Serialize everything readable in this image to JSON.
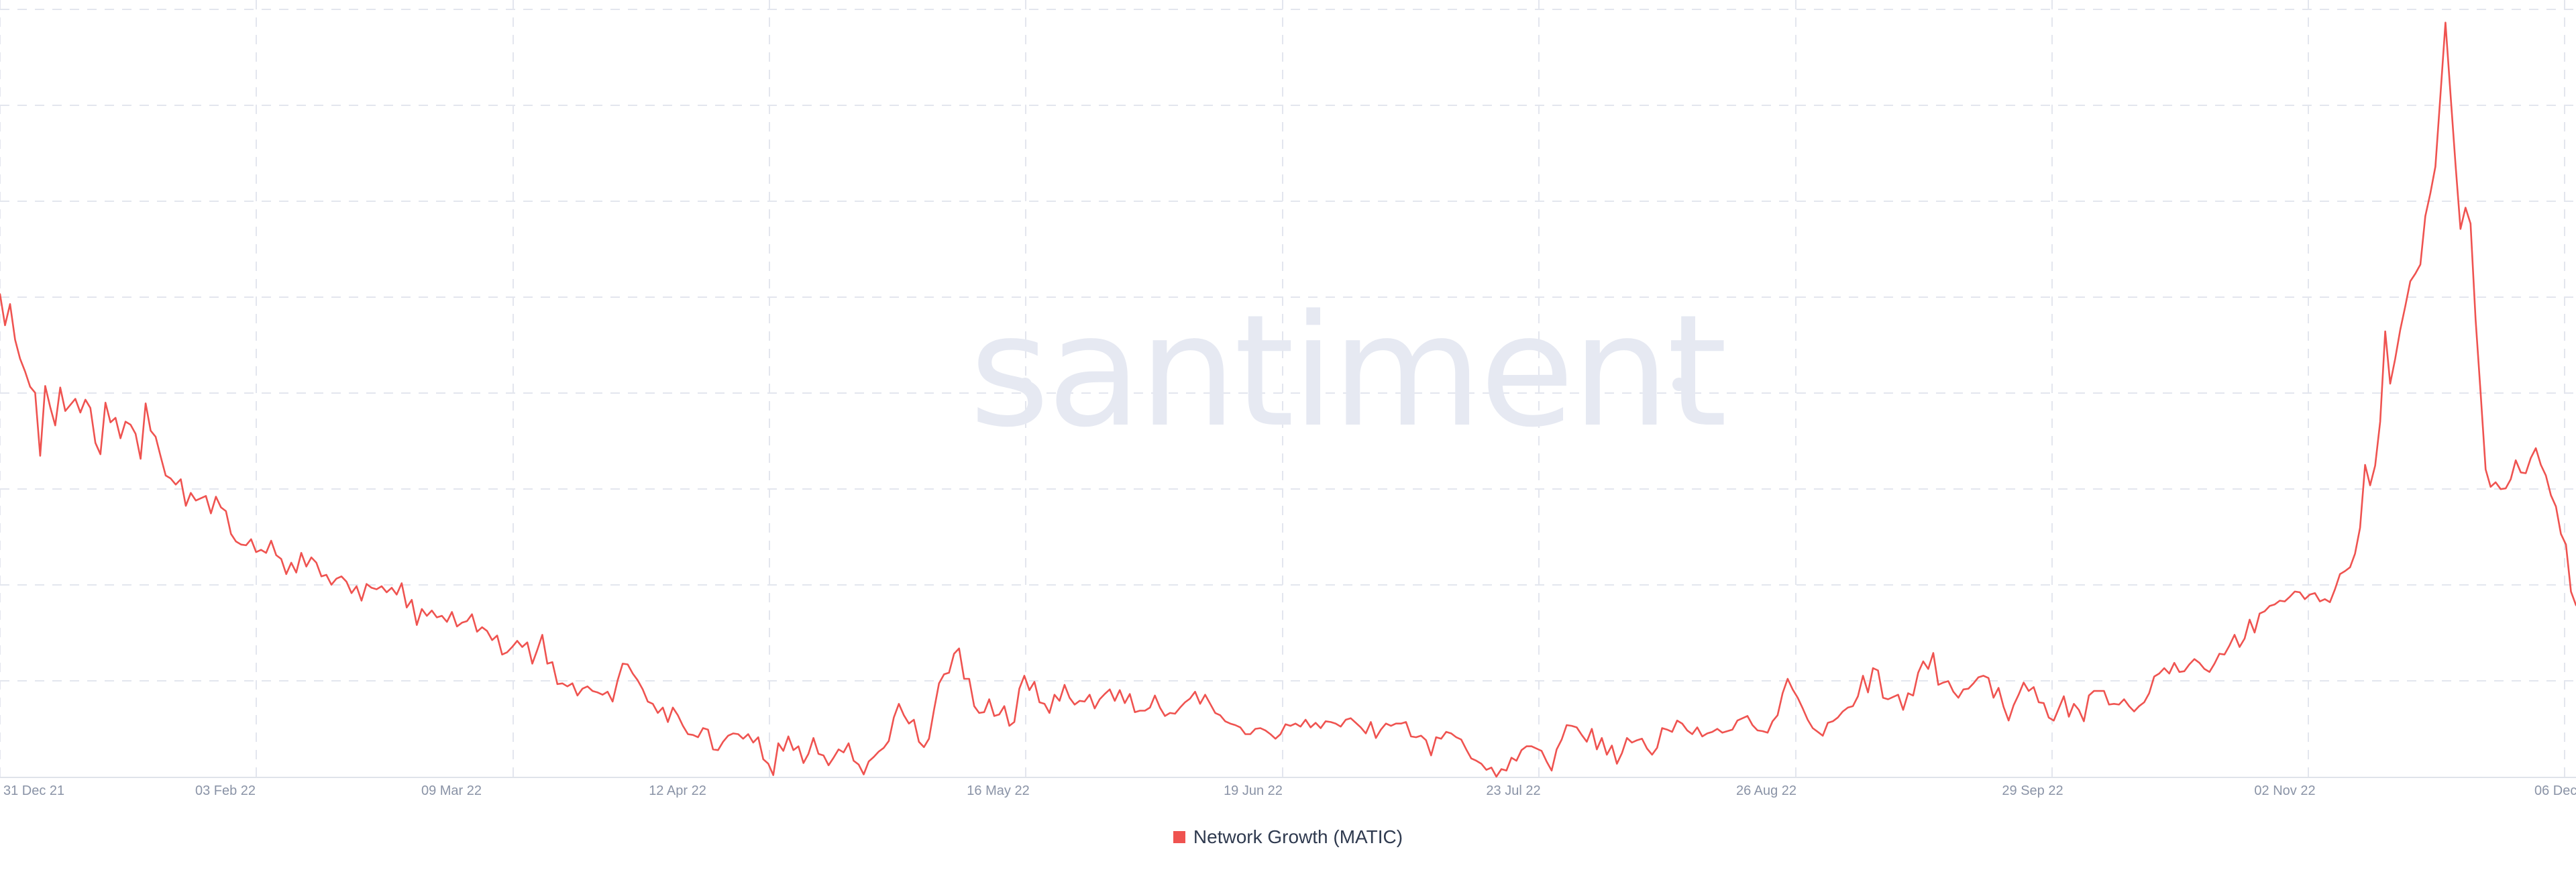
{
  "chart_data": {
    "type": "line",
    "watermark": "santiment",
    "x_tick_labels": [
      "31 Dec 21",
      "03 Feb 22",
      "09 Mar 22",
      "12 Apr 22",
      "16 May 22",
      "19 Jun 22",
      "23 Jul 22",
      "26 Aug 22",
      "29 Sep 22",
      "02 Nov 22",
      "06 Dec"
    ],
    "grid": true,
    "y_axis_labels_visible": false,
    "legend_position": "bottom-center",
    "series": [
      {
        "name": "Network Growth (MATIC)",
        "color": "#ef5350",
        "x_start": "2021-12-31",
        "x_end": "2022-12-06",
        "values": [
          0.637,
          0.596,
          0.624,
          0.577,
          0.552,
          0.535,
          0.515,
          0.507,
          0.424,
          0.516,
          0.488,
          0.464,
          0.514,
          0.483,
          0.491,
          0.499,
          0.481,
          0.498,
          0.487,
          0.441,
          0.426,
          0.494,
          0.468,
          0.474,
          0.447,
          0.469,
          0.465,
          0.453,
          0.42,
          0.493,
          0.457,
          0.449,
          0.423,
          0.398,
          0.394,
          0.386,
          0.393,
          0.358,
          0.375,
          0.365,
          0.368,
          0.371,
          0.348,
          0.37,
          0.356,
          0.351,
          0.321,
          0.311,
          0.307,
          0.306,
          0.314,
          0.297,
          0.3,
          0.296,
          0.312,
          0.293,
          0.288,
          0.268,
          0.283,
          0.27,
          0.296,
          0.278,
          0.29,
          0.283,
          0.265,
          0.267,
          0.254,
          0.262,
          0.265,
          0.258,
          0.243,
          0.252,
          0.233,
          0.255,
          0.25,
          0.248,
          0.252,
          0.244,
          0.25,
          0.241,
          0.256,
          0.224,
          0.234,
          0.201,
          0.222,
          0.213,
          0.22,
          0.211,
          0.213,
          0.205,
          0.218,
          0.199,
          0.204,
          0.206,
          0.215,
          0.192,
          0.198,
          0.193,
          0.181,
          0.187,
          0.162,
          0.165,
          0.172,
          0.18,
          0.172,
          0.178,
          0.15,
          0.168,
          0.188,
          0.15,
          0.152,
          0.123,
          0.124,
          0.12,
          0.124,
          0.108,
          0.117,
          0.12,
          0.114,
          0.112,
          0.109,
          0.113,
          0.1,
          0.128,
          0.15,
          0.149,
          0.137,
          0.128,
          0.116,
          0.1,
          0.097,
          0.085,
          0.092,
          0.073,
          0.092,
          0.082,
          0.068,
          0.057,
          0.056,
          0.053,
          0.065,
          0.063,
          0.037,
          0.036,
          0.047,
          0.055,
          0.058,
          0.057,
          0.051,
          0.057,
          0.046,
          0.053,
          0.024,
          0.018,
          0.003,
          0.045,
          0.035,
          0.054,
          0.036,
          0.041,
          0.019,
          0.031,
          0.052,
          0.031,
          0.029,
          0.016,
          0.026,
          0.037,
          0.033,
          0.045,
          0.022,
          0.017,
          0.004,
          0.021,
          0.027,
          0.034,
          0.039,
          0.048,
          0.079,
          0.097,
          0.082,
          0.071,
          0.076,
          0.047,
          0.04,
          0.051,
          0.089,
          0.124,
          0.136,
          0.138,
          0.163,
          0.17,
          0.13,
          0.13,
          0.094,
          0.085,
          0.086,
          0.103,
          0.081,
          0.083,
          0.094,
          0.068,
          0.073,
          0.117,
          0.134,
          0.115,
          0.126,
          0.099,
          0.097,
          0.085,
          0.109,
          0.101,
          0.122,
          0.105,
          0.096,
          0.101,
          0.1,
          0.109,
          0.091,
          0.103,
          0.11,
          0.116,
          0.101,
          0.115,
          0.098,
          0.11,
          0.086,
          0.088,
          0.088,
          0.092,
          0.108,
          0.092,
          0.081,
          0.085,
          0.084,
          0.092,
          0.099,
          0.104,
          0.113,
          0.097,
          0.109,
          0.097,
          0.085,
          0.082,
          0.074,
          0.071,
          0.069,
          0.066,
          0.057,
          0.057,
          0.064,
          0.065,
          0.062,
          0.057,
          0.051,
          0.057,
          0.07,
          0.068,
          0.071,
          0.067,
          0.076,
          0.066,
          0.072,
          0.065,
          0.074,
          0.073,
          0.071,
          0.067,
          0.076,
          0.078,
          0.072,
          0.066,
          0.058,
          0.073,
          0.052,
          0.063,
          0.071,
          0.068,
          0.071,
          0.071,
          0.073,
          0.054,
          0.053,
          0.055,
          0.049,
          0.029,
          0.053,
          0.051,
          0.06,
          0.058,
          0.053,
          0.05,
          0.037,
          0.025,
          0.022,
          0.018,
          0.01,
          0.013,
          0.001,
          0.011,
          0.009,
          0.026,
          0.022,
          0.036,
          0.041,
          0.041,
          0.038,
          0.035,
          0.021,
          0.009,
          0.037,
          0.05,
          0.069,
          0.068,
          0.066,
          0.056,
          0.047,
          0.064,
          0.037,
          0.052,
          0.03,
          0.042,
          0.018,
          0.032,
          0.052,
          0.046,
          0.049,
          0.051,
          0.038,
          0.03,
          0.039,
          0.065,
          0.063,
          0.06,
          0.075,
          0.071,
          0.062,
          0.057,
          0.066,
          0.054,
          0.058,
          0.06,
          0.064,
          0.059,
          0.061,
          0.063,
          0.075,
          0.078,
          0.081,
          0.069,
          0.062,
          0.061,
          0.059,
          0.074,
          0.082,
          0.111,
          0.13,
          0.116,
          0.105,
          0.091,
          0.076,
          0.065,
          0.06,
          0.055,
          0.072,
          0.074,
          0.079,
          0.087,
          0.092,
          0.094,
          0.107,
          0.134,
          0.112,
          0.144,
          0.141,
          0.105,
          0.103,
          0.106,
          0.109,
          0.089,
          0.111,
          0.108,
          0.138,
          0.153,
          0.143,
          0.164,
          0.122,
          0.125,
          0.127,
          0.113,
          0.105,
          0.116,
          0.117,
          0.124,
          0.132,
          0.134,
          0.131,
          0.105,
          0.118,
          0.093,
          0.075,
          0.095,
          0.109,
          0.125,
          0.114,
          0.119,
          0.099,
          0.098,
          0.079,
          0.075,
          0.091,
          0.107,
          0.08,
          0.097,
          0.089,
          0.074,
          0.108,
          0.114,
          0.114,
          0.114,
          0.096,
          0.097,
          0.096,
          0.103,
          0.094,
          0.087,
          0.094,
          0.099,
          0.111,
          0.133,
          0.137,
          0.144,
          0.137,
          0.151,
          0.139,
          0.14,
          0.149,
          0.156,
          0.151,
          0.143,
          0.139,
          0.15,
          0.163,
          0.162,
          0.174,
          0.188,
          0.172,
          0.183,
          0.208,
          0.191,
          0.216,
          0.219,
          0.226,
          0.228,
          0.233,
          0.232,
          0.238,
          0.245,
          0.244,
          0.235,
          0.241,
          0.243,
          0.232,
          0.235,
          0.231,
          0.248,
          0.268,
          0.272,
          0.277,
          0.295,
          0.329,
          0.412,
          0.385,
          0.411,
          0.469,
          0.588,
          0.519,
          0.552,
          0.59,
          0.621,
          0.654,
          0.664,
          0.676,
          0.74,
          0.77,
          0.805,
          0.899,
          0.995,
          0.901,
          0.808,
          0.723,
          0.751,
          0.73,
          0.604,
          0.507,
          0.406,
          0.383,
          0.389,
          0.38,
          0.381,
          0.393,
          0.418,
          0.402,
          0.401,
          0.421,
          0.434,
          0.412,
          0.398,
          0.372,
          0.357,
          0.321,
          0.307,
          0.245,
          0.227
        ]
      }
    ]
  }
}
